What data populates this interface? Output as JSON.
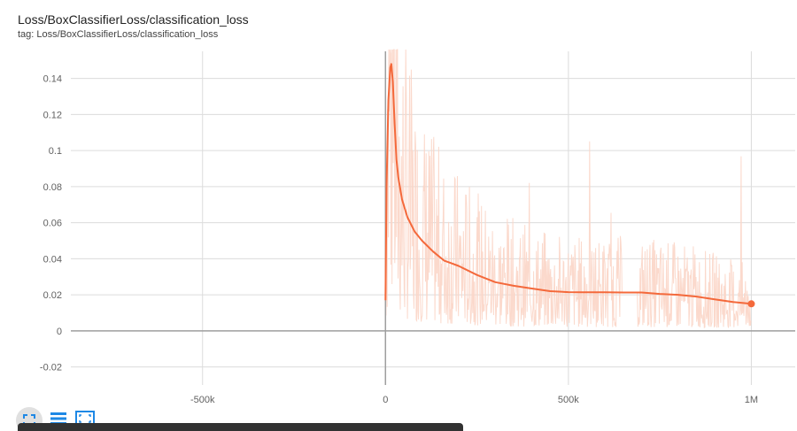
{
  "card": {
    "title": "Loss/BoxClassifierLoss/classification_loss",
    "subtitle": "tag: Loss/BoxClassifierLoss/classification_loss"
  },
  "toolbar": {
    "icons": [
      "fit-domain-icon",
      "toggle-log-icon",
      "expand-icon"
    ]
  },
  "colors": {
    "smoothed": "#f4693b",
    "raw": "#fbd5c7",
    "grid": "#dcdcdc",
    "axis": "#9e9e9e"
  },
  "chart_data": {
    "type": "line",
    "title": "Loss/BoxClassifierLoss/classification_loss",
    "xlabel": "",
    "ylabel": "",
    "xlim": [
      -860000,
      1120000
    ],
    "ylim": [
      -0.03,
      0.155
    ],
    "x_ticks": [
      -500000,
      0,
      500000,
      1000000
    ],
    "x_tick_labels": [
      "-500k",
      "0",
      "500k",
      "1M"
    ],
    "y_ticks": [
      -0.02,
      0,
      0.02,
      0.04,
      0.06,
      0.08,
      0.1,
      0.12,
      0.14
    ],
    "y_tick_labels": [
      "-0.02",
      "0",
      "0.02",
      "0.04",
      "0.06",
      "0.08",
      "0.1",
      "0.12",
      "0.14"
    ],
    "grid": true,
    "series": [
      {
        "role": "smoothed",
        "x": [
          0,
          3000,
          8000,
          13000,
          16000,
          20000,
          25000,
          30000,
          35000,
          45000,
          60000,
          80000,
          100000,
          130000,
          160000,
          200000,
          250000,
          300000,
          350000,
          400000,
          450000,
          500000,
          550000,
          600000,
          650000,
          700000,
          750000,
          800000,
          850000,
          900000,
          950000,
          1000000
        ],
        "y": [
          0.017,
          0.08,
          0.128,
          0.146,
          0.148,
          0.138,
          0.115,
          0.095,
          0.085,
          0.073,
          0.063,
          0.055,
          0.05,
          0.044,
          0.039,
          0.036,
          0.031,
          0.027,
          0.025,
          0.0235,
          0.022,
          0.0215,
          0.0214,
          0.0214,
          0.0213,
          0.0213,
          0.0205,
          0.02,
          0.019,
          0.0175,
          0.016,
          0.015
        ]
      }
    ]
  }
}
